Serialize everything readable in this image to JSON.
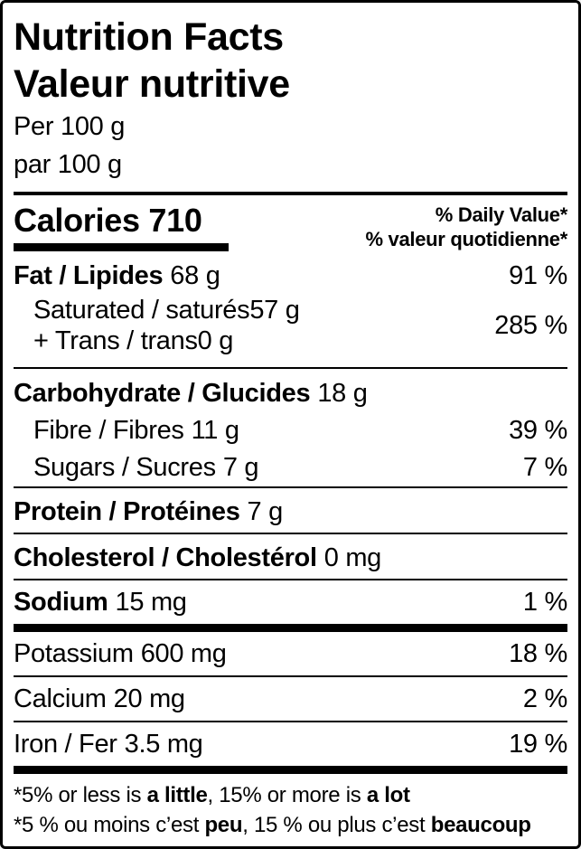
{
  "nutrition_label": {
    "title_en": "Nutrition Facts",
    "title_fr": "Valeur nutritive",
    "serving_en": "Per 100 g",
    "serving_fr": "par 100 g",
    "calories_label": "Calories",
    "calories_value": "710",
    "daily_value_header_en": "% Daily Value*",
    "daily_value_header_fr": "% valeur quotidienne*",
    "rows": {
      "fat": {
        "name": "Fat / Lipides",
        "amount": "68 g",
        "dv": "91 %"
      },
      "saturated": {
        "name": "Saturated / saturés",
        "amount": "57 g"
      },
      "trans": {
        "name": "+ Trans / trans",
        "amount": "0 g"
      },
      "sat_trans_dv": "285 %",
      "carbohydrate": {
        "name": "Carbohydrate / Glucides",
        "amount": "18 g"
      },
      "fibre": {
        "name": "Fibre / Fibres",
        "amount": "11 g",
        "dv": "39 %"
      },
      "sugars": {
        "name": "Sugars / Sucres",
        "amount": "7 g",
        "dv": "7 %"
      },
      "protein": {
        "name": "Protein / Protéines",
        "amount": "7 g"
      },
      "cholesterol": {
        "name": "Cholesterol / Cholestérol",
        "amount": "0 mg"
      },
      "sodium": {
        "name": "Sodium",
        "amount": "15 mg",
        "dv": "1 %"
      },
      "potassium": {
        "name": "Potassium",
        "amount": "600 mg",
        "dv": "18 %"
      },
      "calcium": {
        "name": "Calcium",
        "amount": "20 mg",
        "dv": "2 %"
      },
      "iron": {
        "name": "Iron / Fer",
        "amount": "3.5 mg",
        "dv": "19 %"
      }
    },
    "footnote_en": {
      "p1": "*5% or less is ",
      "b1": "a little",
      "p2": ", 15% or more is ",
      "b2": "a lot"
    },
    "footnote_fr": {
      "p1": "*5 % ou moins c’est ",
      "b1": "peu",
      "p2": ", 15 % ou plus c’est ",
      "b2": "beaucoup"
    },
    "colors": {
      "text": "#000000",
      "background": "#ffffff",
      "rule": "#000000"
    }
  }
}
